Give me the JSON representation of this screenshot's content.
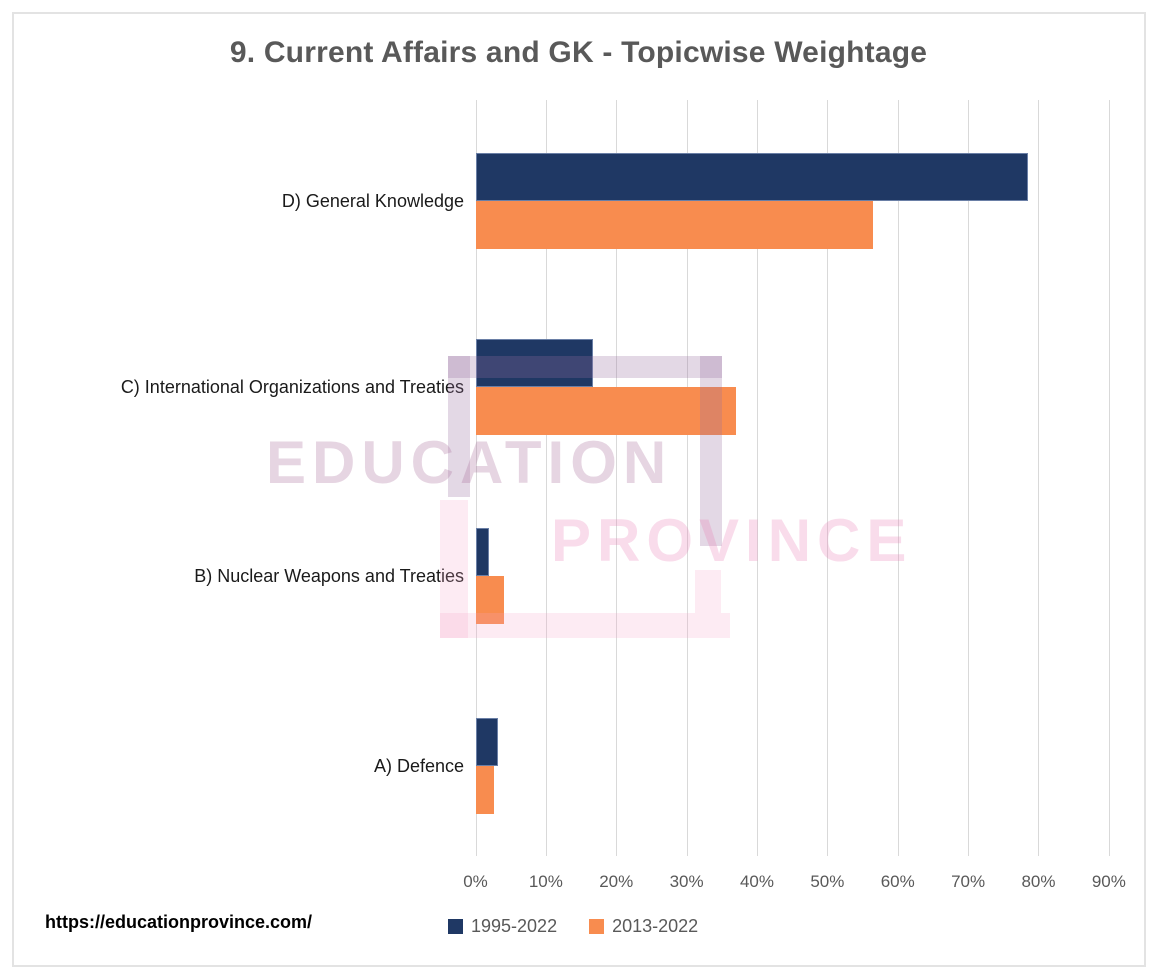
{
  "title": "9. Current Affairs and GK - Topicwise Weightage",
  "footer": {
    "url": "https://educationprovince.com/"
  },
  "watermark": {
    "line1": "EDUCATION",
    "line2": "PROVINCE"
  },
  "colors": {
    "series_1995_2022": "#1F3864",
    "series_2013_2022": "#F88C4F",
    "gridline": "#D9D9D9",
    "title_text": "#595959",
    "axis_text": "#595959",
    "category_text": "#1A1A1A"
  },
  "chart_data": {
    "type": "bar",
    "orientation": "horizontal",
    "title": "9. Current Affairs and GK - Topicwise Weightage",
    "categories": [
      "A) Defence",
      "B) Nuclear Weapons and Treaties",
      "C) International Organizations and Treaties",
      "D) General Knowledge"
    ],
    "series": [
      {
        "name": "1995-2022",
        "color": "#1F3864",
        "values": [
          3.2,
          1.9,
          16.7,
          78.5
        ]
      },
      {
        "name": "2013-2022",
        "color": "#F88C4F",
        "values": [
          2.7,
          4.1,
          37.0,
          56.5
        ]
      }
    ],
    "xlabel": "",
    "ylabel": "",
    "x_ticks": [
      "0%",
      "10%",
      "20%",
      "30%",
      "40%",
      "50%",
      "60%",
      "70%",
      "80%",
      "90%"
    ],
    "xlim": [
      0,
      90
    ],
    "grid": true,
    "legend_position": "bottom",
    "display_order_top_to_bottom": [
      "D",
      "C",
      "B",
      "A"
    ]
  }
}
